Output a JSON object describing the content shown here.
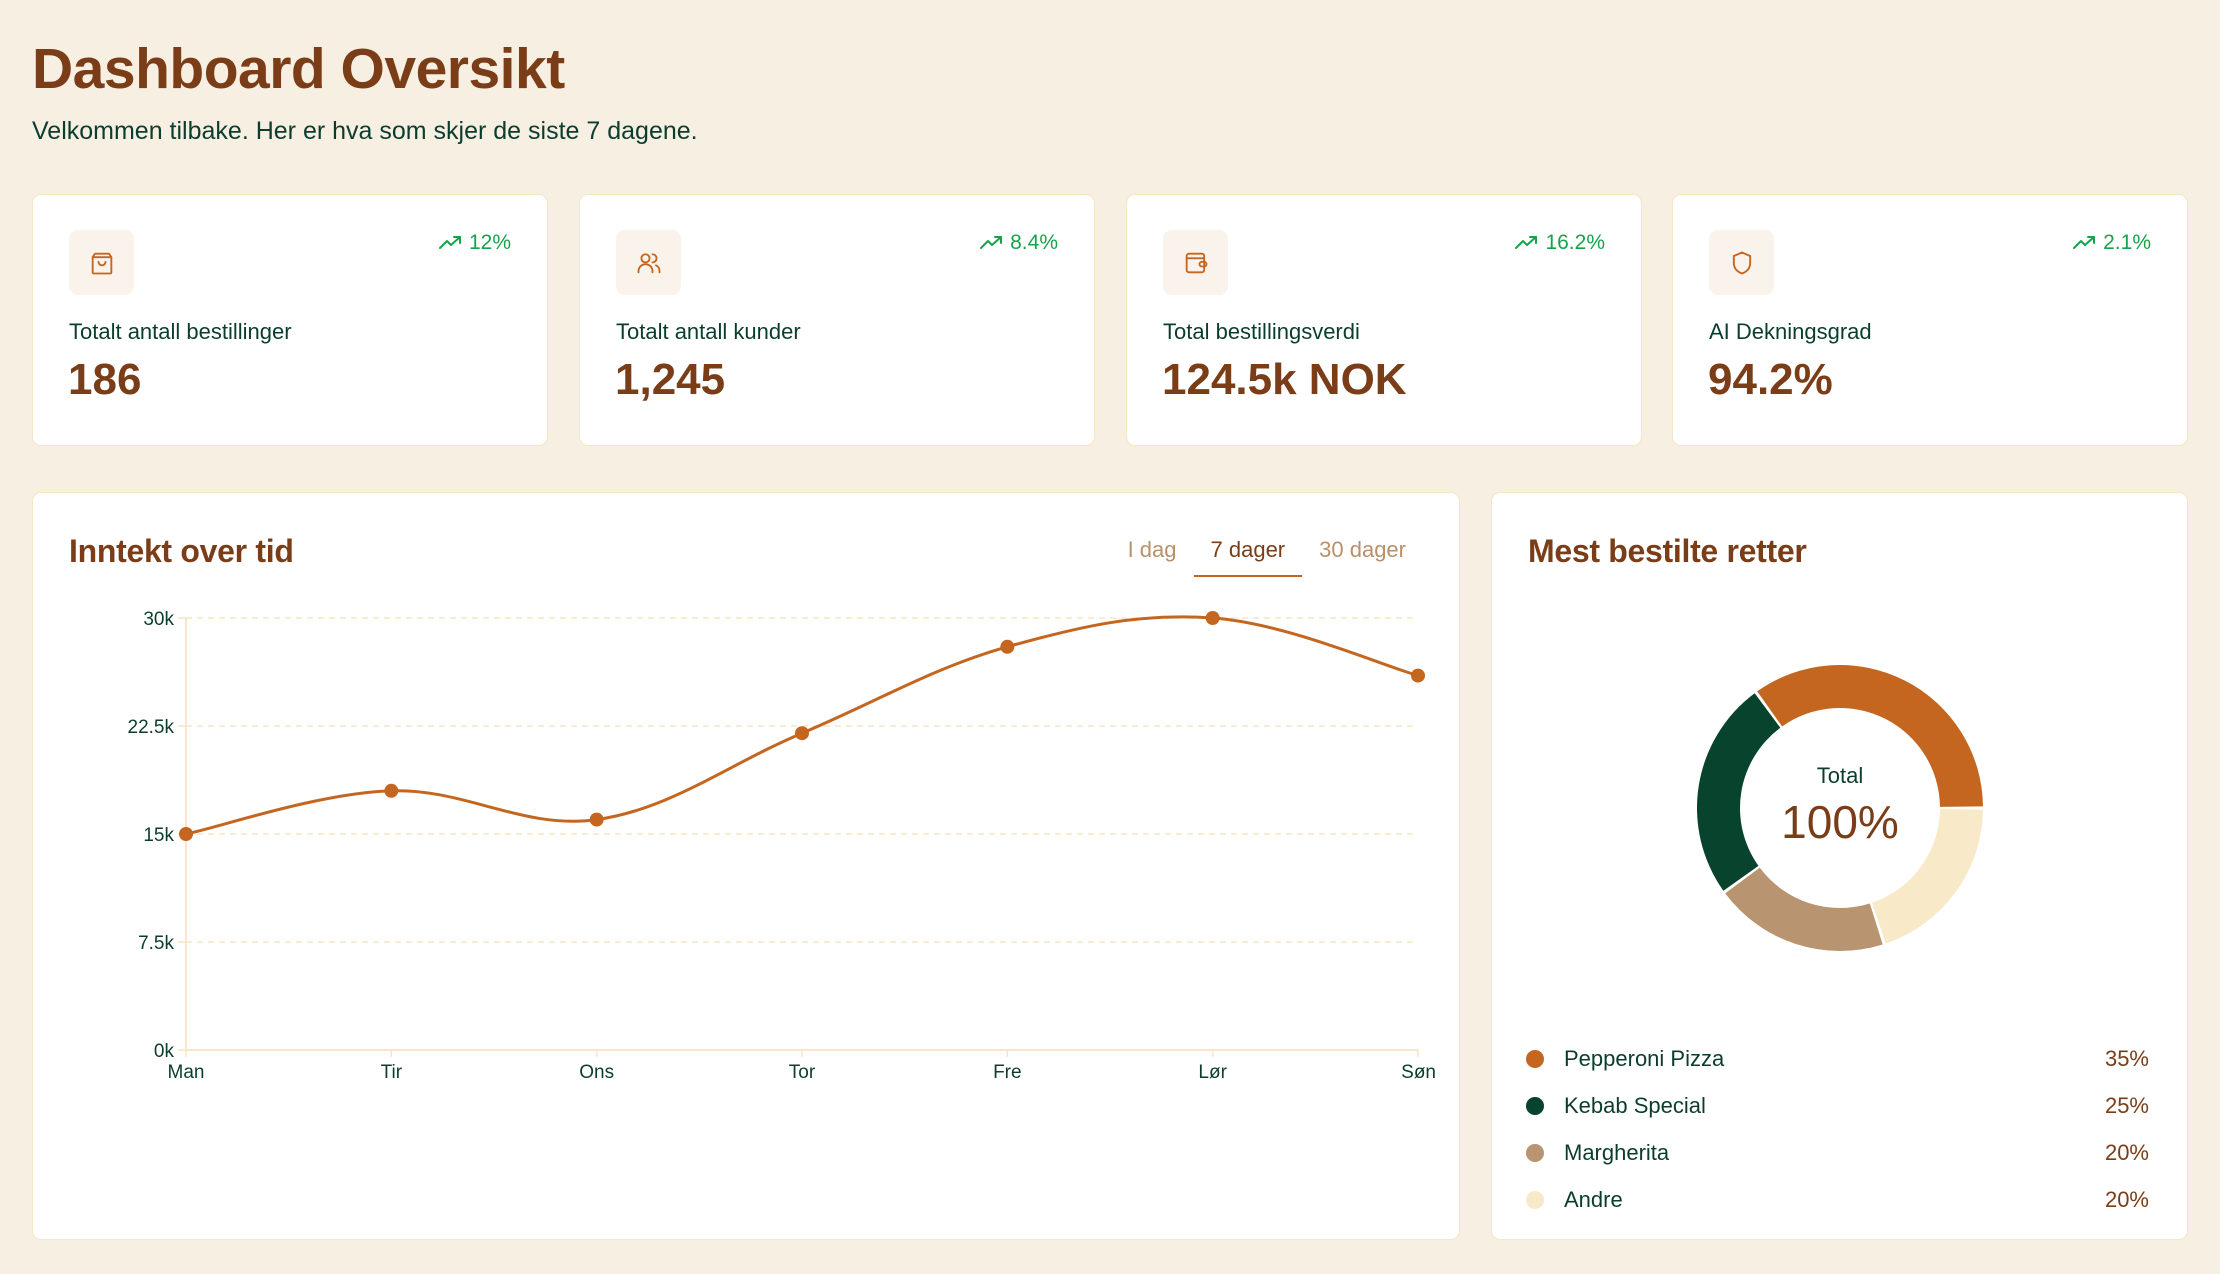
{
  "header": {
    "title": "Dashboard Oversikt",
    "subtitle": "Velkommen tilbake. Her er hva som skjer de siste 7 dagene."
  },
  "stats": [
    {
      "icon": "shopping-bag-icon",
      "label": "Totalt antall bestillinger",
      "value": "186",
      "trend": "12%",
      "trend_direction": "up"
    },
    {
      "icon": "users-icon",
      "label": "Totalt antall kunder",
      "value": "1,245",
      "trend": "8.4%",
      "trend_direction": "up"
    },
    {
      "icon": "wallet-icon",
      "label": "Total bestillingsverdi",
      "value": "124.5k NOK",
      "trend": "16.2%",
      "trend_direction": "up"
    },
    {
      "icon": "shield-icon",
      "label": "AI Dekningsgrad",
      "value": "94.2%",
      "trend": "2.1%",
      "trend_direction": "up"
    }
  ],
  "revenue": {
    "title": "Inntekt over tid",
    "tabs": [
      {
        "label": "I dag",
        "active": false
      },
      {
        "label": "7 dager",
        "active": true
      },
      {
        "label": "30 dager",
        "active": false
      }
    ]
  },
  "dishes": {
    "title": "Mest bestilte retter",
    "center_label": "Total",
    "center_value": "100%",
    "items": [
      {
        "name": "Pepperoni Pizza",
        "pct": "35%",
        "value": 35,
        "color": "#c4661f"
      },
      {
        "name": "Kebab Special",
        "pct": "25%",
        "value": 25,
        "color": "#07432d"
      },
      {
        "name": "Margherita",
        "pct": "20%",
        "value": 20,
        "color": "#b99470"
      },
      {
        "name": "Andre",
        "pct": "20%",
        "value": 20,
        "color": "#f8eac8"
      }
    ]
  },
  "colors": {
    "accent": "#c4661f",
    "heading": "#7a3d17",
    "text": "#0b3d2e",
    "trend_up": "#16a34a",
    "background": "#f7efe2",
    "grid": "#f8e6c4"
  },
  "chart_data": [
    {
      "type": "line",
      "title": "Inntekt over tid",
      "categories": [
        "Man",
        "Tir",
        "Ons",
        "Tor",
        "Fre",
        "Lør",
        "Søn"
      ],
      "values": [
        15000,
        18000,
        16000,
        22000,
        28000,
        30000,
        26000
      ],
      "yticks": [
        "0k",
        "7.5k",
        "15k",
        "22.5k",
        "30k"
      ],
      "ylim": [
        0,
        30000
      ],
      "xlabel": "",
      "ylabel": "",
      "grid": true,
      "line_color": "#c4661f"
    },
    {
      "type": "pie",
      "title": "Mest bestilte retter",
      "categories": [
        "Pepperoni Pizza",
        "Kebab Special",
        "Margherita",
        "Andre"
      ],
      "values": [
        35,
        25,
        20,
        20
      ],
      "center_text": "Total 100%",
      "legend_position": "bottom"
    }
  ]
}
